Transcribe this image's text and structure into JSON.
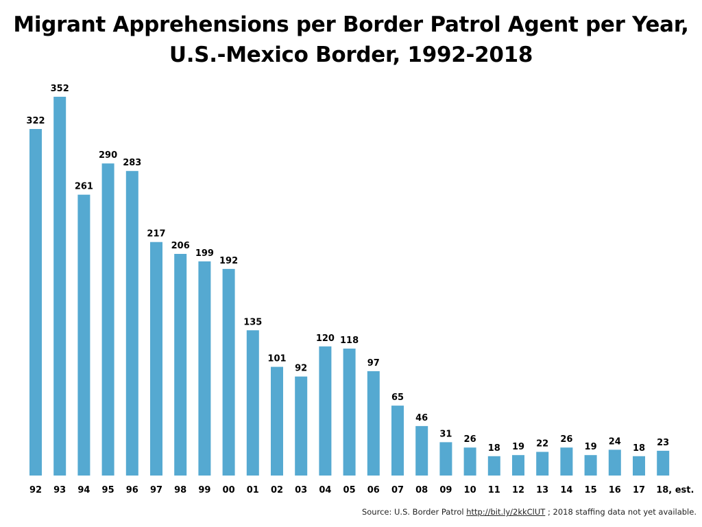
{
  "chart_data": {
    "type": "bar",
    "title_lines": [
      "Migrant Apprehensions per Border Patrol Agent per Year,",
      "U.S.-Mexico Border, 1992-2018"
    ],
    "categories": [
      "92",
      "93",
      "94",
      "95",
      "96",
      "97",
      "98",
      "99",
      "00",
      "01",
      "02",
      "03",
      "04",
      "05",
      "06",
      "07",
      "08",
      "09",
      "10",
      "11",
      "12",
      "13",
      "14",
      "15",
      "16",
      "17",
      "18, est."
    ],
    "values": [
      322,
      352,
      261,
      290,
      283,
      217,
      206,
      199,
      192,
      135,
      101,
      92,
      120,
      118,
      97,
      65,
      46,
      31,
      26,
      18,
      19,
      22,
      26,
      19,
      24,
      18,
      23
    ],
    "xlabel": "",
    "ylabel": "",
    "ylim": [
      0,
      352
    ],
    "grid": false,
    "legend": "none",
    "bar_color": "#55a9d1"
  },
  "source": {
    "prefix": "Source: U.S. Border Patrol ",
    "link": "http://bit.ly/2kkClUT",
    "suffix": "; 2018 staffing data not yet available."
  }
}
